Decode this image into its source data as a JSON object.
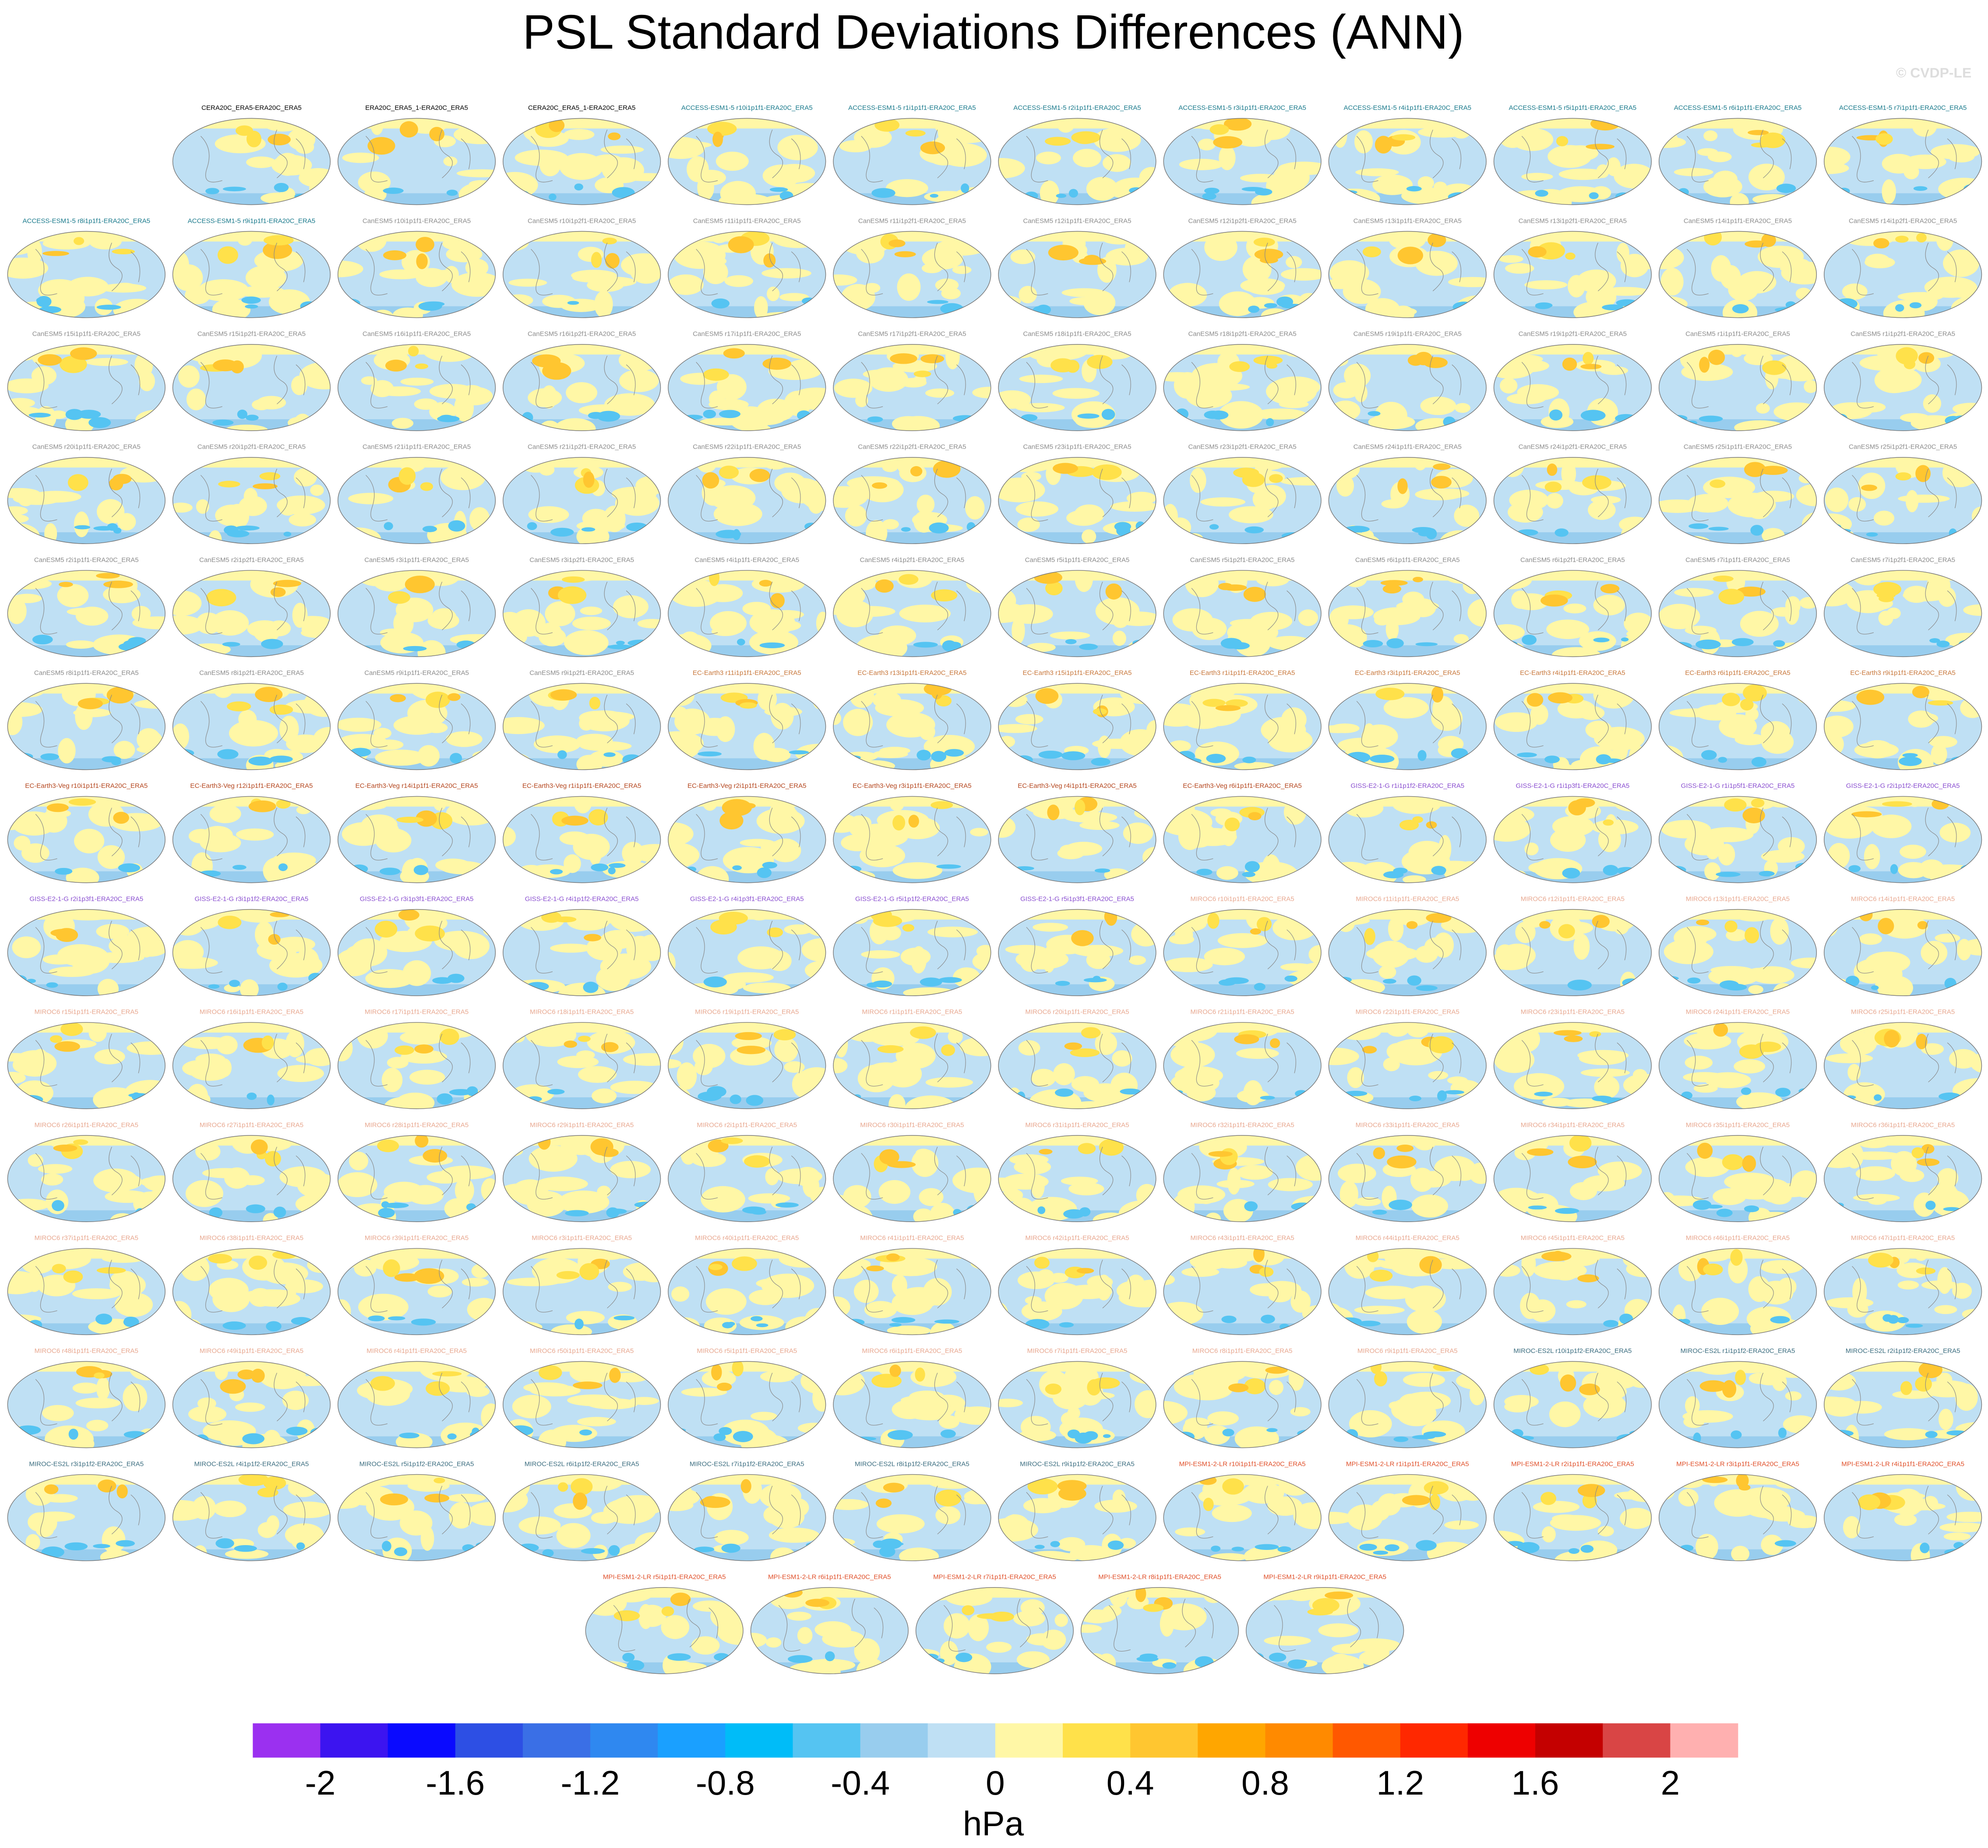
{
  "chart_data": {
    "type": "contour-map-grid",
    "title": "PSL Standard Deviations Differences (ANN)",
    "credit": "© CVDP-LE",
    "panel_groups": [
      {
        "color": "#000000",
        "titles": [
          "CERA20C_ERA5-ERA20C_ERA5",
          "ERA20C_ERA5_1-ERA20C_ERA5",
          "CERA20C_ERA5_1-ERA20C_ERA5"
        ]
      },
      {
        "color": "#1a7a8c",
        "titles": [
          "ACCESS-ESM1-5 r10i1p1f1-ERA20C_ERA5",
          "ACCESS-ESM1-5 r1i1p1f1-ERA20C_ERA5",
          "ACCESS-ESM1-5 r2i1p1f1-ERA20C_ERA5",
          "ACCESS-ESM1-5 r3i1p1f1-ERA20C_ERA5",
          "ACCESS-ESM1-5 r4i1p1f1-ERA20C_ERA5",
          "ACCESS-ESM1-5 r5i1p1f1-ERA20C_ERA5",
          "ACCESS-ESM1-5 r6i1p1f1-ERA20C_ERA5",
          "ACCESS-ESM1-5 r7i1p1f1-ERA20C_ERA5",
          "ACCESS-ESM1-5 r8i1p1f1-ERA20C_ERA5",
          "ACCESS-ESM1-5 r9i1p1f1-ERA20C_ERA5"
        ]
      },
      {
        "color": "#8c8c8c",
        "titles": [
          "CanESM5 r10i1p1f1-ERA20C_ERA5",
          "CanESM5 r10i1p2f1-ERA20C_ERA5",
          "CanESM5 r11i1p1f1-ERA20C_ERA5",
          "CanESM5 r11i1p2f1-ERA20C_ERA5",
          "CanESM5 r12i1p1f1-ERA20C_ERA5",
          "CanESM5 r12i1p2f1-ERA20C_ERA5",
          "CanESM5 r13i1p1f1-ERA20C_ERA5",
          "CanESM5 r13i1p2f1-ERA20C_ERA5",
          "CanESM5 r14i1p1f1-ERA20C_ERA5",
          "CanESM5 r14i1p2f1-ERA20C_ERA5",
          "CanESM5 r15i1p1f1-ERA20C_ERA5",
          "CanESM5 r15i1p2f1-ERA20C_ERA5",
          "CanESM5 r16i1p1f1-ERA20C_ERA5",
          "CanESM5 r16i1p2f1-ERA20C_ERA5",
          "CanESM5 r17i1p1f1-ERA20C_ERA5",
          "CanESM5 r17i1p2f1-ERA20C_ERA5",
          "CanESM5 r18i1p1f1-ERA20C_ERA5",
          "CanESM5 r18i1p2f1-ERA20C_ERA5",
          "CanESM5 r19i1p1f1-ERA20C_ERA5",
          "CanESM5 r19i1p2f1-ERA20C_ERA5",
          "CanESM5 r1i1p1f1-ERA20C_ERA5",
          "CanESM5 r1i1p2f1-ERA20C_ERA5",
          "CanESM5 r20i1p1f1-ERA20C_ERA5",
          "CanESM5 r20i1p2f1-ERA20C_ERA5",
          "CanESM5 r21i1p1f1-ERA20C_ERA5",
          "CanESM5 r21i1p2f1-ERA20C_ERA5",
          "CanESM5 r22i1p1f1-ERA20C_ERA5",
          "CanESM5 r22i1p2f1-ERA20C_ERA5",
          "CanESM5 r23i1p1f1-ERA20C_ERA5",
          "CanESM5 r23i1p2f1-ERA20C_ERA5",
          "CanESM5 r24i1p1f1-ERA20C_ERA5",
          "CanESM5 r24i1p2f1-ERA20C_ERA5",
          "CanESM5 r25i1p1f1-ERA20C_ERA5",
          "CanESM5 r25i1p2f1-ERA20C_ERA5",
          "CanESM5 r2i1p1f1-ERA20C_ERA5",
          "CanESM5 r2i1p2f1-ERA20C_ERA5",
          "CanESM5 r3i1p1f1-ERA20C_ERA5",
          "CanESM5 r3i1p2f1-ERA20C_ERA5",
          "CanESM5 r4i1p1f1-ERA20C_ERA5",
          "CanESM5 r4i1p2f1-ERA20C_ERA5",
          "CanESM5 r5i1p1f1-ERA20C_ERA5",
          "CanESM5 r5i1p2f1-ERA20C_ERA5",
          "CanESM5 r6i1p1f1-ERA20C_ERA5",
          "CanESM5 r6i1p2f1-ERA20C_ERA5",
          "CanESM5 r7i1p1f1-ERA20C_ERA5",
          "CanESM5 r7i1p2f1-ERA20C_ERA5",
          "CanESM5 r8i1p1f1-ERA20C_ERA5",
          "CanESM5 r8i1p2f1-ERA20C_ERA5",
          "CanESM5 r9i1p1f1-ERA20C_ERA5",
          "CanESM5 r9i1p2f1-ERA20C_ERA5"
        ]
      },
      {
        "color": "#c8783c",
        "titles": [
          "EC-Earth3 r11i1p1f1-ERA20C_ERA5",
          "EC-Earth3 r13i1p1f1-ERA20C_ERA5",
          "EC-Earth3 r15i1p1f1-ERA20C_ERA5",
          "EC-Earth3 r1i1p1f1-ERA20C_ERA5",
          "EC-Earth3 r3i1p1f1-ERA20C_ERA5",
          "EC-Earth3 r4i1p1f1-ERA20C_ERA5",
          "EC-Earth3 r6i1p1f1-ERA20C_ERA5",
          "EC-Earth3 r9i1p1f1-ERA20C_ERA5"
        ]
      },
      {
        "color": "#b4461e",
        "titles": [
          "EC-Earth3-Veg r10i1p1f1-ERA20C_ERA5",
          "EC-Earth3-Veg r12i1p1f1-ERA20C_ERA5",
          "EC-Earth3-Veg r14i1p1f1-ERA20C_ERA5",
          "EC-Earth3-Veg r1i1p1f1-ERA20C_ERA5",
          "EC-Earth3-Veg r2i1p1f1-ERA20C_ERA5",
          "EC-Earth3-Veg r3i1p1f1-ERA20C_ERA5",
          "EC-Earth3-Veg r4i1p1f1-ERA20C_ERA5",
          "EC-Earth3-Veg r6i1p1f1-ERA20C_ERA5"
        ]
      },
      {
        "color": "#8a4fd0",
        "titles": [
          "GISS-E2-1-G r1i1p1f2-ERA20C_ERA5",
          "GISS-E2-1-G r1i1p3f1-ERA20C_ERA5",
          "GISS-E2-1-G r1i1p5f1-ERA20C_ERA5",
          "GISS-E2-1-G r2i1p1f2-ERA20C_ERA5",
          "GISS-E2-1-G r2i1p3f1-ERA20C_ERA5",
          "GISS-E2-1-G r3i1p1f2-ERA20C_ERA5",
          "GISS-E2-1-G r3i1p3f1-ERA20C_ERA5",
          "GISS-E2-1-G r4i1p1f2-ERA20C_ERA5",
          "GISS-E2-1-G r4i1p3f1-ERA20C_ERA5",
          "GISS-E2-1-G r5i1p1f2-ERA20C_ERA5",
          "GISS-E2-1-G r5i1p3f1-ERA20C_ERA5"
        ]
      },
      {
        "color": "#e8a890",
        "titles": [
          "MIROC6 r10i1p1f1-ERA20C_ERA5",
          "MIROC6 r11i1p1f1-ERA20C_ERA5",
          "MIROC6 r12i1p1f1-ERA20C_ERA5",
          "MIROC6 r13i1p1f1-ERA20C_ERA5",
          "MIROC6 r14i1p1f1-ERA20C_ERA5",
          "MIROC6 r15i1p1f1-ERA20C_ERA5",
          "MIROC6 r16i1p1f1-ERA20C_ERA5",
          "MIROC6 r17i1p1f1-ERA20C_ERA5",
          "MIROC6 r18i1p1f1-ERA20C_ERA5",
          "MIROC6 r19i1p1f1-ERA20C_ERA5",
          "MIROC6 r1i1p1f1-ERA20C_ERA5",
          "MIROC6 r20i1p1f1-ERA20C_ERA5",
          "MIROC6 r21i1p1f1-ERA20C_ERA5",
          "MIROC6 r22i1p1f1-ERA20C_ERA5",
          "MIROC6 r23i1p1f1-ERA20C_ERA5",
          "MIROC6 r24i1p1f1-ERA20C_ERA5",
          "MIROC6 r25i1p1f1-ERA20C_ERA5",
          "MIROC6 r26i1p1f1-ERA20C_ERA5",
          "MIROC6 r27i1p1f1-ERA20C_ERA5",
          "MIROC6 r28i1p1f1-ERA20C_ERA5",
          "MIROC6 r29i1p1f1-ERA20C_ERA5",
          "MIROC6 r2i1p1f1-ERA20C_ERA5",
          "MIROC6 r30i1p1f1-ERA20C_ERA5",
          "MIROC6 r31i1p1f1-ERA20C_ERA5",
          "MIROC6 r32i1p1f1-ERA20C_ERA5",
          "MIROC6 r33i1p1f1-ERA20C_ERA5",
          "MIROC6 r34i1p1f1-ERA20C_ERA5",
          "MIROC6 r35i1p1f1-ERA20C_ERA5",
          "MIROC6 r36i1p1f1-ERA20C_ERA5",
          "MIROC6 r37i1p1f1-ERA20C_ERA5",
          "MIROC6 r38i1p1f1-ERA20C_ERA5",
          "MIROC6 r39i1p1f1-ERA20C_ERA5",
          "MIROC6 r3i1p1f1-ERA20C_ERA5",
          "MIROC6 r40i1p1f1-ERA20C_ERA5",
          "MIROC6 r41i1p1f1-ERA20C_ERA5",
          "MIROC6 r42i1p1f1-ERA20C_ERA5",
          "MIROC6 r43i1p1f1-ERA20C_ERA5",
          "MIROC6 r44i1p1f1-ERA20C_ERA5",
          "MIROC6 r45i1p1f1-ERA20C_ERA5",
          "MIROC6 r46i1p1f1-ERA20C_ERA5",
          "MIROC6 r47i1p1f1-ERA20C_ERA5",
          "MIROC6 r48i1p1f1-ERA20C_ERA5",
          "MIROC6 r49i1p1f1-ERA20C_ERA5",
          "MIROC6 r4i1p1f1-ERA20C_ERA5",
          "MIROC6 r50i1p1f1-ERA20C_ERA5",
          "MIROC6 r5i1p1f1-ERA20C_ERA5",
          "MIROC6 r6i1p1f1-ERA20C_ERA5",
          "MIROC6 r7i1p1f1-ERA20C_ERA5",
          "MIROC6 r8i1p1f1-ERA20C_ERA5",
          "MIROC6 r9i1p1f1-ERA20C_ERA5"
        ]
      },
      {
        "color": "#3c6e80",
        "titles": [
          "MIROC-ES2L r10i1p1f2-ERA20C_ERA5",
          "MIROC-ES2L r1i1p1f2-ERA20C_ERA5",
          "MIROC-ES2L r2i1p1f2-ERA20C_ERA5",
          "MIROC-ES2L r3i1p1f2-ERA20C_ERA5",
          "MIROC-ES2L r4i1p1f2-ERA20C_ERA5",
          "MIROC-ES2L r5i1p1f2-ERA20C_ERA5",
          "MIROC-ES2L r6i1p1f2-ERA20C_ERA5",
          "MIROC-ES2L r7i1p1f2-ERA20C_ERA5",
          "MIROC-ES2L r8i1p1f2-ERA20C_ERA5",
          "MIROC-ES2L r9i1p1f2-ERA20C_ERA5"
        ]
      },
      {
        "color": "#e0502a",
        "titles": [
          "MPI-ESM1-2-LR r10i1p1f1-ERA20C_ERA5",
          "MPI-ESM1-2-LR r1i1p1f1-ERA20C_ERA5",
          "MPI-ESM1-2-LR r2i1p1f1-ERA20C_ERA5",
          "MPI-ESM1-2-LR r3i1p1f1-ERA20C_ERA5",
          "MPI-ESM1-2-LR r4i1p1f1-ERA20C_ERA5",
          "MPI-ESM1-2-LR r5i1p1f1-ERA20C_ERA5",
          "MPI-ESM1-2-LR r6i1p1f1-ERA20C_ERA5",
          "MPI-ESM1-2-LR r7i1p1f1-ERA20C_ERA5",
          "MPI-ESM1-2-LR r8i1p1f1-ERA20C_ERA5",
          "MPI-ESM1-2-LR r9i1p1f1-ERA20C_ERA5"
        ]
      }
    ],
    "colorbar": {
      "label": "hPa",
      "levels": [
        -2,
        -1.8,
        -1.6,
        -1.4,
        -1.2,
        -1,
        -0.8,
        -0.6,
        -0.4,
        -0.2,
        0,
        0.2,
        0.4,
        0.6,
        0.8,
        1,
        1.2,
        1.4,
        1.6,
        1.8,
        2
      ],
      "colors": [
        "#9b30f0",
        "#3c14f0",
        "#0a0aff",
        "#2d4fe4",
        "#3a6fe6",
        "#2f88f0",
        "#1aa0ff",
        "#00bcf8",
        "#55c4f2",
        "#98cdee",
        "#bfe0f4",
        "#fff7a6",
        "#ffe14a",
        "#ffc630",
        "#ffa600",
        "#ff8a00",
        "#ff5800",
        "#ff2800",
        "#ee0000",
        "#c40000",
        "#d94545",
        "#ffb0b0"
      ],
      "ticks": [
        -2,
        -1.6,
        -1.2,
        -0.8,
        -0.4,
        0,
        0.4,
        0.8,
        1.2,
        1.6,
        2
      ]
    }
  }
}
